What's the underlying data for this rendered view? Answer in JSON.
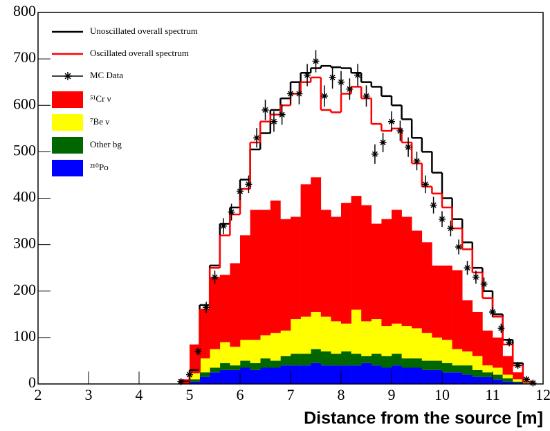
{
  "chart_data": {
    "type": "histogram",
    "xlabel": "Distance from the source [m]",
    "xlim": [
      2,
      12
    ],
    "ylim": [
      0,
      800
    ],
    "xticks": [
      2,
      3,
      4,
      5,
      6,
      7,
      8,
      9,
      10,
      11,
      12
    ],
    "yticks": [
      0,
      100,
      200,
      300,
      400,
      500,
      600,
      700,
      800
    ],
    "bins": [
      4.8,
      5,
      5.2,
      5.4,
      5.6,
      5.8,
      6,
      6.2,
      6.4,
      6.6,
      6.8,
      7,
      7.2,
      7.4,
      7.6,
      7.8,
      8,
      8.2,
      8.4,
      8.6,
      8.8,
      9,
      9.2,
      9.4,
      9.6,
      9.8,
      10,
      10.2,
      10.4,
      10.6,
      10.8,
      11,
      11.2,
      11.4,
      11.6,
      11.8
    ],
    "stacked": true,
    "series": [
      {
        "name": "²¹⁰Po",
        "color": "#0000ff",
        "values": [
          2,
          5,
          15,
          25,
          30,
          30,
          35,
          30,
          35,
          35,
          40,
          40,
          40,
          45,
          40,
          40,
          40,
          40,
          45,
          40,
          35,
          40,
          35,
          35,
          30,
          30,
          25,
          25,
          20,
          15,
          15,
          10,
          5,
          3,
          1
        ]
      },
      {
        "name": "Other bg",
        "color": "#006600",
        "values": [
          1,
          5,
          10,
          10,
          15,
          10,
          15,
          15,
          20,
          15,
          20,
          25,
          25,
          30,
          30,
          25,
          30,
          25,
          15,
          25,
          25,
          25,
          20,
          20,
          20,
          20,
          20,
          15,
          20,
          15,
          10,
          10,
          7,
          2,
          1
        ]
      },
      {
        "name": "⁷Be ν",
        "color": "#ffff00",
        "values": [
          2,
          15,
          30,
          40,
          45,
          40,
          45,
          50,
          50,
          60,
          55,
          75,
          80,
          80,
          75,
          70,
          60,
          95,
          75,
          75,
          65,
          65,
          70,
          65,
          60,
          50,
          50,
          35,
          30,
          30,
          15,
          15,
          8,
          5,
          1
        ]
      },
      {
        "name": "⁵¹Cr ν",
        "color": "#ff0000",
        "values": [
          5,
          60,
          105,
          155,
          145,
          180,
          225,
          280,
          270,
          285,
          240,
          220,
          285,
          290,
          230,
          225,
          260,
          245,
          250,
          205,
          230,
          245,
          235,
          210,
          195,
          155,
          160,
          170,
          110,
          95,
          75,
          65,
          40,
          15,
          2
        ]
      }
    ],
    "lines": [
      {
        "name": "Unoscillated overall spectrum",
        "color": "#000000",
        "values": [
          5,
          30,
          170,
          255,
          345,
          380,
          440,
          505,
          540,
          590,
          615,
          650,
          670,
          680,
          685,
          682,
          680,
          670,
          650,
          640,
          620,
          600,
          570,
          530,
          500,
          455,
          400,
          355,
          305,
          250,
          200,
          150,
          95,
          45,
          5
        ]
      },
      {
        "name": "Oscillated overall spectrum",
        "color": "#ff0000",
        "values": [
          3,
          25,
          160,
          250,
          320,
          365,
          420,
          520,
          565,
          580,
          600,
          625,
          650,
          660,
          590,
          585,
          625,
          640,
          615,
          560,
          545,
          550,
          520,
          475,
          425,
          410,
          380,
          335,
          290,
          240,
          185,
          145,
          85,
          40,
          5
        ]
      }
    ],
    "data": {
      "name": "MC Data",
      "color": "#000000",
      "x": [
        4.83,
        5.0,
        5.17,
        5.33,
        5.5,
        5.67,
        5.83,
        6.0,
        6.17,
        6.33,
        6.5,
        6.67,
        6.83,
        7.0,
        7.17,
        7.33,
        7.5,
        7.67,
        7.83,
        8.0,
        8.17,
        8.33,
        8.5,
        8.67,
        8.83,
        9.0,
        9.17,
        9.33,
        9.5,
        9.67,
        9.83,
        10.0,
        10.17,
        10.33,
        10.5,
        10.67,
        10.83,
        11.0,
        11.17,
        11.33,
        11.5,
        11.67,
        11.8
      ],
      "values": [
        5,
        20,
        70,
        165,
        230,
        340,
        370,
        415,
        430,
        530,
        590,
        565,
        580,
        625,
        625,
        665,
        695,
        620,
        660,
        650,
        635,
        665,
        620,
        495,
        520,
        565,
        545,
        510,
        480,
        430,
        385,
        355,
        335,
        295,
        250,
        230,
        215,
        155,
        120,
        90,
        40,
        10,
        2
      ],
      "errors": [
        2,
        4,
        8,
        12,
        14,
        17,
        18,
        19,
        19,
        21,
        22,
        22,
        22,
        23,
        23,
        24,
        24,
        23,
        24,
        24,
        23,
        24,
        23,
        21,
        21,
        22,
        22,
        21,
        20,
        19,
        18,
        17,
        17,
        16,
        15,
        14,
        14,
        11,
        10,
        9,
        6,
        3,
        1
      ]
    }
  }
}
